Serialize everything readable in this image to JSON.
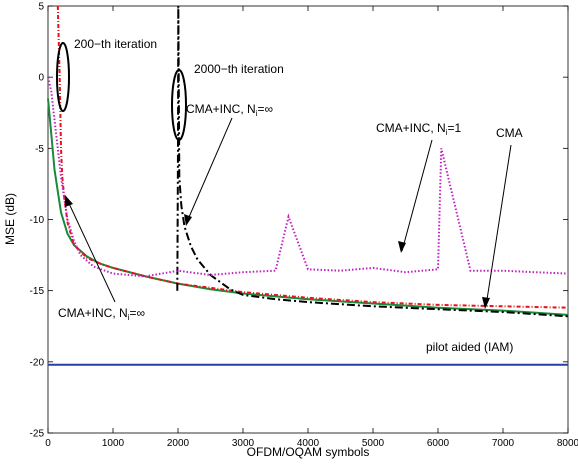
{
  "chart_data": {
    "type": "line",
    "title": "",
    "xlabel": "OFDM/OQAM symbols",
    "ylabel": "MSE (dB)",
    "xlim": [
      0,
      8000
    ],
    "ylim": [
      -25,
      5
    ],
    "xticks": [
      0,
      1000,
      2000,
      3000,
      4000,
      5000,
      6000,
      7000,
      8000
    ],
    "yticks": [
      5,
      0,
      -5,
      -10,
      -15,
      -20,
      -25
    ],
    "grid": false,
    "series": [
      {
        "name": "CMA",
        "color": "#1a8a3a",
        "dash": "solid",
        "x": [
          0,
          50,
          100,
          200,
          300,
          400,
          600,
          800,
          1000,
          1500,
          2000,
          2500,
          3000,
          4000,
          5000,
          6000,
          7000,
          8000
        ],
        "y": [
          -1.5,
          -4,
          -6.5,
          -9.5,
          -11,
          -11.8,
          -12.6,
          -13.1,
          -13.4,
          -14,
          -14.5,
          -14.9,
          -15.2,
          -15.6,
          -15.9,
          -16.2,
          -16.4,
          -16.7
        ]
      },
      {
        "name": "CMA+INC, N_i=∞ (200-th iteration)",
        "color": "#e8121a",
        "dash": "4,2,1,2",
        "x": [
          150,
          180,
          200,
          220,
          250,
          280,
          300,
          400,
          600,
          800,
          1000,
          1500,
          2000,
          2500,
          3000,
          4000,
          5000,
          6000,
          7000,
          8000
        ],
        "y": [
          5,
          0,
          -5,
          -7,
          -8.5,
          -9.5,
          -10.2,
          -11.8,
          -12.7,
          -13.1,
          -13.4,
          -14,
          -14.5,
          -14.8,
          -15.1,
          -15.5,
          -15.8,
          -16,
          -16.1,
          -16.2
        ]
      },
      {
        "name": "CMA+INC, N_i=∞ (2000-th iteration)",
        "color": "#000000",
        "dash": "8,3,2,3",
        "x": [
          1990,
          2000,
          2005,
          2020,
          2050,
          2100,
          2200,
          2300,
          2500,
          2800,
          3000,
          3500,
          4000,
          5000,
          6000,
          7000,
          8000
        ],
        "y": [
          -15,
          -5,
          5,
          -7,
          -9,
          -10.5,
          -11.9,
          -12.8,
          -13.9,
          -14.9,
          -15.3,
          -15.6,
          -15.8,
          -16.1,
          -16.3,
          -16.5,
          -16.8
        ]
      },
      {
        "name": "CMA+INC, N_i=1",
        "color": "#c020c0",
        "dash": "1.5,2",
        "x": [
          0,
          50,
          100,
          150,
          200,
          300,
          400,
          500,
          700,
          1000,
          1500,
          2000,
          2500,
          3000,
          3500,
          3700,
          4000,
          4500,
          5000,
          5500,
          6000,
          6050,
          6500,
          7000,
          7500,
          8000
        ],
        "y": [
          0,
          -1,
          -3,
          -5,
          -7,
          -10,
          -11.5,
          -12.5,
          -13.3,
          -13.8,
          -14,
          -13.6,
          -13.9,
          -13.7,
          -13.6,
          -9.8,
          -13.5,
          -13.6,
          -13.4,
          -13.7,
          -13.5,
          -5,
          -13.6,
          -13.6,
          -13.7,
          -13.8
        ]
      },
      {
        "name": "pilot aided (IAM)",
        "color": "#2540a0",
        "dash": "solid",
        "x": [
          0,
          8000
        ],
        "y": [
          -20.2,
          -20.2
        ]
      }
    ],
    "annotations": {
      "iter200": "200−th iteration",
      "iter2000": "2000−th iteration",
      "inc_inf_bottom": "CMA+INC, N",
      "inc_inf_bottom_sub": "i",
      "inc_inf_bottom_tail": "=∞",
      "inc_inf_top": "CMA+INC, N",
      "inc_inf_top_sub": "i",
      "inc_inf_top_tail": "=∞",
      "inc_1": "CMA+INC, N",
      "inc_1_sub": "i",
      "inc_1_tail": "=1",
      "cma": "CMA",
      "pilot": "pilot aided (IAM)"
    }
  }
}
